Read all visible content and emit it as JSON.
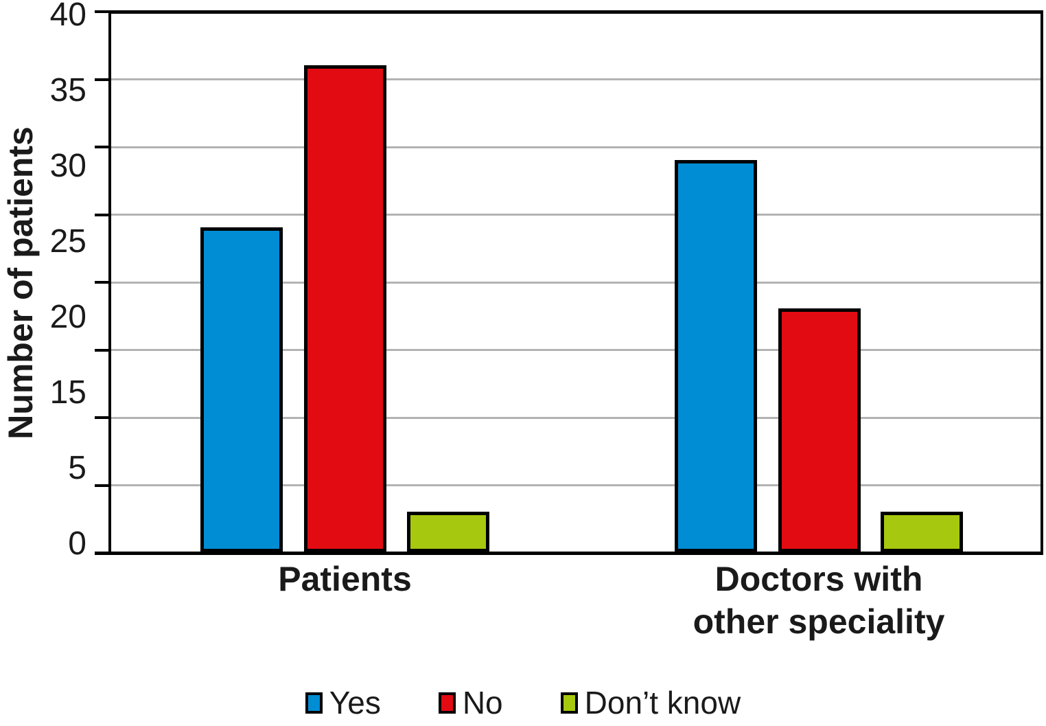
{
  "chart_data": {
    "type": "bar",
    "title": "",
    "ylabel": "Number of patients",
    "xlabel": "",
    "ylim": [
      0,
      40
    ],
    "ytick_interval": 5,
    "ytick_labels_shown": [
      "40",
      "35",
      "30",
      "25",
      "20",
      "15",
      "5",
      "0"
    ],
    "grid": "horizontal",
    "gridline_color": "#b3b3b3",
    "frame_color": "#000000",
    "background_color": "#ffffff",
    "legend_position": "bottom",
    "categories": [
      "Patients",
      "Doctors with other speciality"
    ],
    "category_label_lines": [
      [
        "Patients"
      ],
      [
        "Doctors with",
        "other speciality"
      ]
    ],
    "series": [
      {
        "name": "Yes",
        "color": "#008dd4",
        "values": [
          24,
          29
        ]
      },
      {
        "name": "No",
        "color": "#e30b12",
        "values": [
          36,
          18
        ]
      },
      {
        "name": "Don’t know",
        "color": "#a6c80f",
        "values": [
          3,
          3
        ]
      }
    ]
  }
}
